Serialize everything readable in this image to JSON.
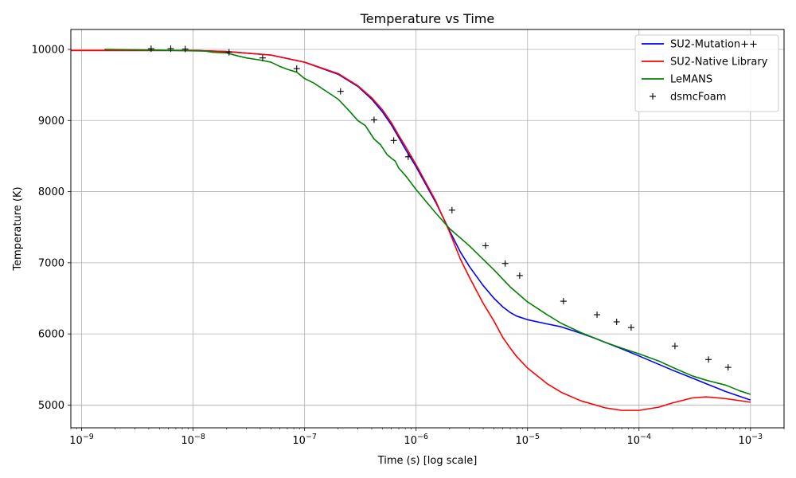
{
  "chart_data": {
    "type": "line",
    "title": "Temperature vs Time",
    "xlabel": "Time (s) [log scale]",
    "ylabel": "Temperature (K)",
    "xscale": "log",
    "xlim": [
      8e-10,
      0.002
    ],
    "ylim": [
      4680,
      10280
    ],
    "grid": true,
    "legend_position": "top-right",
    "x_ticks": [
      {
        "value": 1e-09,
        "base": "10",
        "exp": "−9"
      },
      {
        "value": 1e-08,
        "base": "10",
        "exp": "−8"
      },
      {
        "value": 1e-07,
        "base": "10",
        "exp": "−7"
      },
      {
        "value": 1e-06,
        "base": "10",
        "exp": "−6"
      },
      {
        "value": 1e-05,
        "base": "10",
        "exp": "−5"
      },
      {
        "value": 0.0001,
        "base": "10",
        "exp": "−4"
      },
      {
        "value": 0.001,
        "base": "10",
        "exp": "−3"
      }
    ],
    "y_ticks": [
      {
        "value": 5000,
        "label": "5000"
      },
      {
        "value": 6000,
        "label": "6000"
      },
      {
        "value": 7000,
        "label": "7000"
      },
      {
        "value": 8000,
        "label": "8000"
      },
      {
        "value": 9000,
        "label": "9000"
      },
      {
        "value": 10000,
        "label": "10000"
      }
    ],
    "series": [
      {
        "name": "SU2-Mutation++",
        "style": "line",
        "color": "#0000ff",
        "points": [
          [
            8e-10,
            9985
          ],
          [
            1e-09,
            9985
          ],
          [
            1e-08,
            9985
          ],
          [
            2e-08,
            9970
          ],
          [
            5e-08,
            9920
          ],
          [
            1e-07,
            9820
          ],
          [
            2e-07,
            9650
          ],
          [
            3e-07,
            9480
          ],
          [
            4e-07,
            9300
          ],
          [
            5e-07,
            9120
          ],
          [
            6e-07,
            8940
          ],
          [
            7e-07,
            8760
          ],
          [
            8e-07,
            8600
          ],
          [
            1e-06,
            8350
          ],
          [
            1.5e-06,
            7850
          ],
          [
            2e-06,
            7450
          ],
          [
            2.5e-06,
            7150
          ],
          [
            3e-06,
            6950
          ],
          [
            4e-06,
            6680
          ],
          [
            5e-06,
            6500
          ],
          [
            6e-06,
            6380
          ],
          [
            7e-06,
            6300
          ],
          [
            8e-06,
            6250
          ],
          [
            1e-05,
            6200
          ],
          [
            1.5e-05,
            6140
          ],
          [
            2e-05,
            6100
          ],
          [
            3e-05,
            6010
          ],
          [
            4e-05,
            5940
          ],
          [
            5e-05,
            5880
          ],
          [
            7e-05,
            5790
          ],
          [
            0.0001,
            5690
          ],
          [
            0.0002,
            5490
          ],
          [
            0.0003,
            5380
          ],
          [
            0.0004,
            5300
          ],
          [
            0.0006,
            5190
          ],
          [
            0.001,
            5070
          ]
        ]
      },
      {
        "name": "SU2-Native Library",
        "style": "line",
        "color": "#ff0000",
        "points": [
          [
            8e-10,
            9985
          ],
          [
            1e-09,
            9985
          ],
          [
            1e-08,
            9985
          ],
          [
            2e-08,
            9970
          ],
          [
            5e-08,
            9920
          ],
          [
            1e-07,
            9820
          ],
          [
            2e-07,
            9660
          ],
          [
            3e-07,
            9490
          ],
          [
            4e-07,
            9320
          ],
          [
            5e-07,
            9150
          ],
          [
            6e-07,
            8970
          ],
          [
            7e-07,
            8790
          ],
          [
            8e-07,
            8640
          ],
          [
            1e-06,
            8380
          ],
          [
            1.5e-06,
            7870
          ],
          [
            2e-06,
            7430
          ],
          [
            2.5e-06,
            7050
          ],
          [
            3e-06,
            6800
          ],
          [
            4e-06,
            6430
          ],
          [
            5e-06,
            6180
          ],
          [
            6e-06,
            5950
          ],
          [
            7e-06,
            5800
          ],
          [
            8e-06,
            5680
          ],
          [
            1e-05,
            5520
          ],
          [
            1.5e-05,
            5300
          ],
          [
            2e-05,
            5180
          ],
          [
            3e-05,
            5060
          ],
          [
            5e-05,
            4960
          ],
          [
            7e-05,
            4925
          ],
          [
            0.0001,
            4925
          ],
          [
            0.00015,
            4970
          ],
          [
            0.0002,
            5030
          ],
          [
            0.0003,
            5100
          ],
          [
            0.0004,
            5115
          ],
          [
            0.0006,
            5090
          ],
          [
            0.001,
            5040
          ]
        ]
      },
      {
        "name": "LeMANS",
        "style": "line",
        "color": "#008000",
        "points": [
          [
            1.6e-09,
            10000
          ],
          [
            3e-09,
            9995
          ],
          [
            5e-09,
            9990
          ],
          [
            1e-08,
            9980
          ],
          [
            1.3e-08,
            9975
          ],
          [
            1.5e-08,
            9960
          ],
          [
            2e-08,
            9950
          ],
          [
            2.5e-08,
            9910
          ],
          [
            3e-08,
            9880
          ],
          [
            4e-08,
            9850
          ],
          [
            5e-08,
            9820
          ],
          [
            6e-08,
            9760
          ],
          [
            7e-08,
            9720
          ],
          [
            8.5e-08,
            9680
          ],
          [
            1e-07,
            9590
          ],
          [
            1.2e-07,
            9530
          ],
          [
            1.5e-07,
            9430
          ],
          [
            2e-07,
            9300
          ],
          [
            2.5e-07,
            9140
          ],
          [
            3e-07,
            9000
          ],
          [
            3.5e-07,
            8930
          ],
          [
            4.2e-07,
            8740
          ],
          [
            4.8e-07,
            8660
          ],
          [
            5.5e-07,
            8520
          ],
          [
            6e-07,
            8470
          ],
          [
            6.5e-07,
            8430
          ],
          [
            7e-07,
            8330
          ],
          [
            8e-07,
            8230
          ],
          [
            1e-06,
            8030
          ],
          [
            1.5e-06,
            7700
          ],
          [
            2e-06,
            7480
          ],
          [
            3e-06,
            7240
          ],
          [
            5e-06,
            6900
          ],
          [
            7e-06,
            6660
          ],
          [
            1e-05,
            6450
          ],
          [
            1.5e-05,
            6270
          ],
          [
            2e-05,
            6150
          ],
          [
            3e-05,
            6020
          ],
          [
            5e-05,
            5880
          ],
          [
            7e-05,
            5800
          ],
          [
            0.0001,
            5720
          ],
          [
            0.00015,
            5620
          ],
          [
            0.0002,
            5530
          ],
          [
            0.0003,
            5410
          ],
          [
            0.0004,
            5350
          ],
          [
            0.0006,
            5280
          ],
          [
            0.0008,
            5200
          ],
          [
            0.001,
            5150
          ]
        ]
      },
      {
        "name": "dsmcFoam",
        "style": "marker",
        "marker": "+",
        "color": "#000000",
        "points": [
          [
            4.2e-09,
            10010
          ],
          [
            6.3e-09,
            10010
          ],
          [
            8.5e-09,
            10005
          ],
          [
            2.1e-08,
            9960
          ],
          [
            4.2e-08,
            9880
          ],
          [
            8.5e-08,
            9730
          ],
          [
            2.1e-07,
            9410
          ],
          [
            4.2e-07,
            9010
          ],
          [
            6.3e-07,
            8720
          ],
          [
            8.5e-07,
            8490
          ],
          [
            2.1e-06,
            7740
          ],
          [
            4.2e-06,
            7240
          ],
          [
            6.3e-06,
            6990
          ],
          [
            8.5e-06,
            6820
          ],
          [
            2.1e-05,
            6460
          ],
          [
            4.2e-05,
            6270
          ],
          [
            6.3e-05,
            6170
          ],
          [
            8.5e-05,
            6090
          ],
          [
            0.00021,
            5830
          ],
          [
            0.00042,
            5640
          ],
          [
            0.00063,
            5530
          ]
        ]
      }
    ]
  }
}
